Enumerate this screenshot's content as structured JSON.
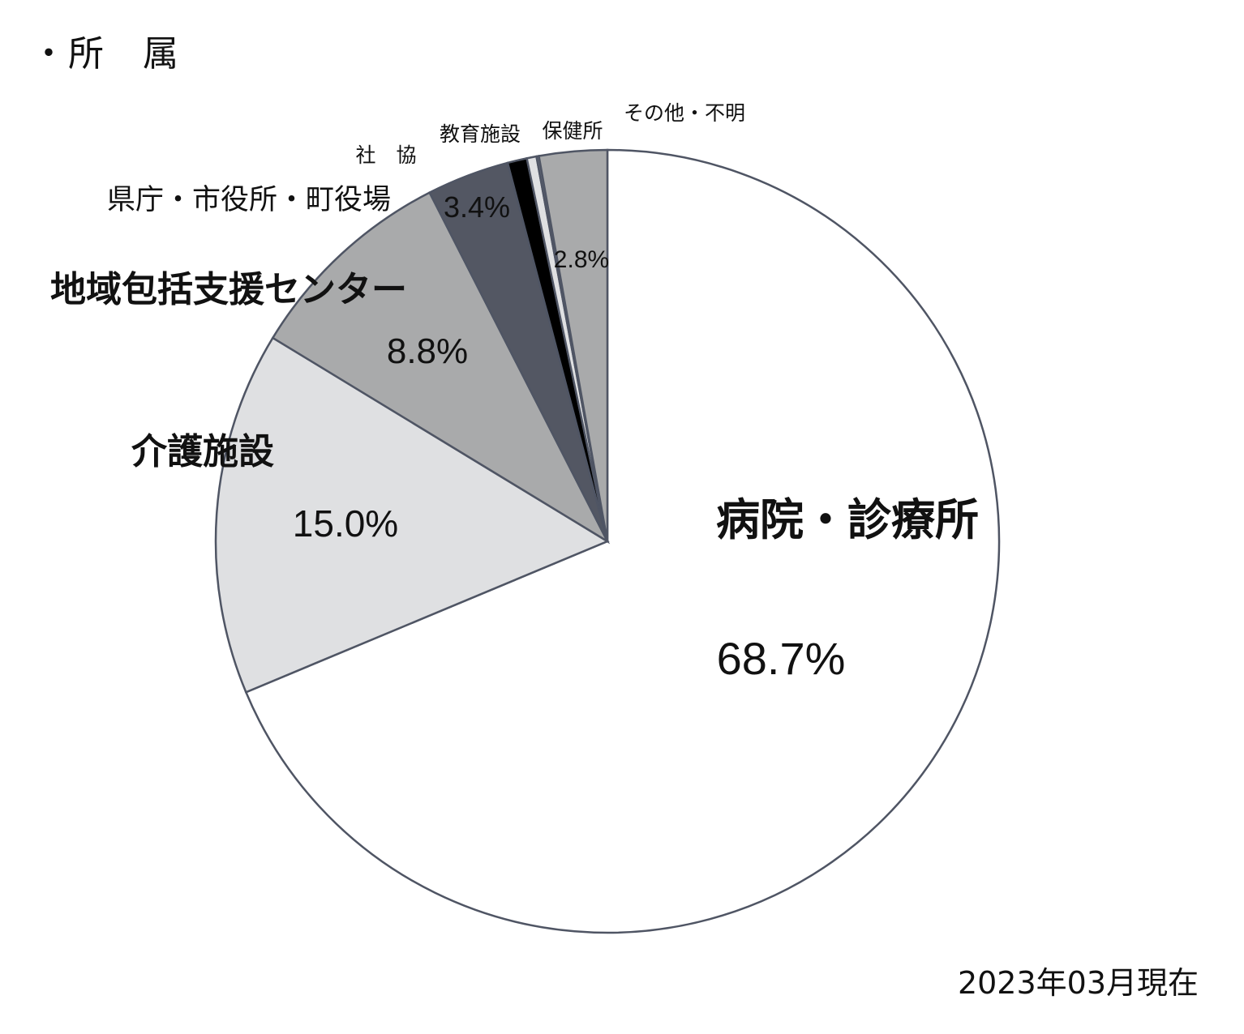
{
  "title": "・所　属",
  "footnote": "2023年03月現在",
  "chart_data": {
    "type": "pie",
    "title": "・所　属",
    "start": "12 o'clock",
    "direction": "clockwise",
    "slices": [
      {
        "label": "病院・診療所",
        "value": 68.7,
        "value_label": "68.7%",
        "color": "#ffffff"
      },
      {
        "label": "介護施設",
        "value": 15.0,
        "value_label": "15.0%",
        "color": "#dfe0e2"
      },
      {
        "label": "地域包括支援センター",
        "value": 8.8,
        "value_label": "8.8%",
        "color": "#a9aaab"
      },
      {
        "label": "県庁・市役所・町役場",
        "value": 3.4,
        "value_label": "3.4%",
        "color": "#535763"
      },
      {
        "label": "社　協",
        "value": 0.8,
        "value_label": "",
        "color": "#000000"
      },
      {
        "label": "教育施設",
        "value": 0.4,
        "value_label": "",
        "color": "#dfe0e2"
      },
      {
        "label": "保健所",
        "value": 0.1,
        "value_label": "",
        "color": "#6b7180"
      },
      {
        "label": "その他・不明",
        "value": 2.8,
        "value_label": "2.8%",
        "color": "#a9aaab"
      }
    ]
  }
}
